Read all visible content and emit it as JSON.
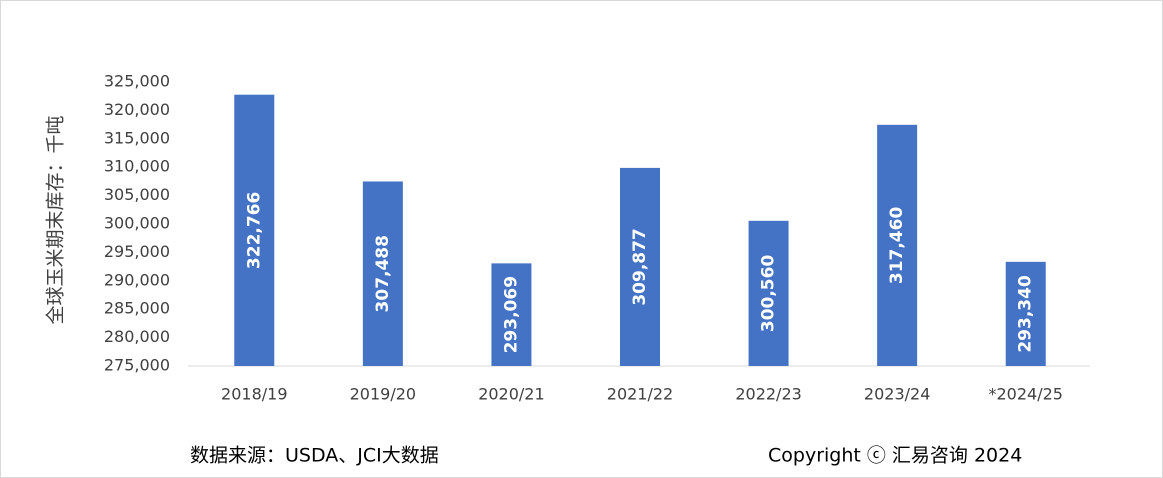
{
  "chart_data": {
    "type": "bar",
    "y_label": "全球玉米期末库存：千吨",
    "source": "数据来源：USDA、JCI大数据",
    "copyright": "Copyright ⓒ 汇易咨询 2024",
    "categories": [
      "2018/19",
      "2019/20",
      "2020/21",
      "2021/22",
      "2022/23",
      "2023/24",
      "*2024/25"
    ],
    "values": [
      322766,
      307488,
      293069,
      309877,
      300560,
      317460,
      293340
    ],
    "value_labels": [
      "322,766",
      "307,488",
      "293,069",
      "309,877",
      "300,560",
      "317,460",
      "293,340"
    ],
    "color": "#4472c4",
    "ylim": [
      275000,
      325000
    ],
    "yticks": [
      {
        "value": 275000,
        "label": "275,000"
      },
      {
        "value": 280000,
        "label": "280,000"
      },
      {
        "value": 285000,
        "label": "285,000"
      },
      {
        "value": 290000,
        "label": "290,000"
      },
      {
        "value": 295000,
        "label": "295,000"
      },
      {
        "value": 300000,
        "label": "300,000"
      },
      {
        "value": 305000,
        "label": "305,000"
      },
      {
        "value": 310000,
        "label": "310,000"
      },
      {
        "value": 315000,
        "label": "315,000"
      },
      {
        "value": 320000,
        "label": "320,000"
      },
      {
        "value": 325000,
        "label": "325,000"
      }
    ],
    "grid": false
  }
}
